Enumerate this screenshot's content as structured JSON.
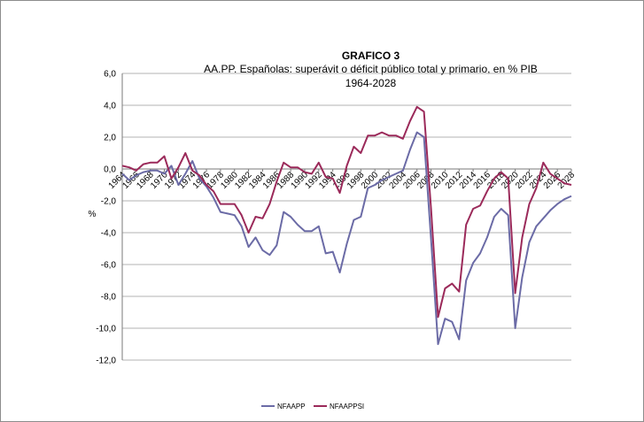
{
  "chart_data": {
    "type": "line",
    "title": "GRAFICO 3",
    "subtitle_line1": "AA.PP. Españolas:  superávit o déficit público total y primario, en % PIB",
    "subtitle_line2": "1964-2028",
    "ylabel": "%",
    "xlabel": "",
    "ylim": [
      -12,
      6
    ],
    "yticks": [
      "6,0",
      "4,0",
      "2,0",
      "0,0",
      "-2,0",
      "-4,0",
      "-6,0",
      "-8,0",
      "-10,0",
      "-12,0"
    ],
    "ytick_values": [
      6,
      4,
      2,
      0,
      -2,
      -4,
      -6,
      -8,
      -10,
      -12
    ],
    "xticks": [
      "1964",
      "1966",
      "1968",
      "1970",
      "1972",
      "1974",
      "1976",
      "1978",
      "1980",
      "1982",
      "1984",
      "1986",
      "1988",
      "1990",
      "1992",
      "1994",
      "1996",
      "1998",
      "2000",
      "2002",
      "2004",
      "2006",
      "2008",
      "2010",
      "2012",
      "2014",
      "2016",
      "2018",
      "2020",
      "2022",
      "2024",
      "2026",
      "2028"
    ],
    "grid": true,
    "legend_position": "bottom",
    "x": [
      1964,
      1965,
      1966,
      1967,
      1968,
      1969,
      1970,
      1971,
      1972,
      1973,
      1974,
      1975,
      1976,
      1977,
      1978,
      1979,
      1980,
      1981,
      1982,
      1983,
      1984,
      1985,
      1986,
      1987,
      1988,
      1989,
      1990,
      1991,
      1992,
      1993,
      1994,
      1995,
      1996,
      1997,
      1998,
      1999,
      2000,
      2001,
      2002,
      2003,
      2004,
      2005,
      2006,
      2007,
      2008,
      2009,
      2010,
      2011,
      2012,
      2013,
      2014,
      2015,
      2016,
      2017,
      2018,
      2019,
      2020,
      2021,
      2022,
      2023,
      2024,
      2025,
      2026,
      2027,
      2028
    ],
    "series": [
      {
        "name": "NFAAPP",
        "color": "#6b6ba6",
        "values": [
          -0.3,
          -0.7,
          -0.4,
          -0.2,
          -0.1,
          -0.1,
          -0.3,
          0.2,
          -1.0,
          -0.3,
          0.5,
          -0.6,
          -1.1,
          -1.8,
          -2.7,
          -2.8,
          -2.9,
          -3.6,
          -4.9,
          -4.3,
          -5.1,
          -5.4,
          -4.8,
          -2.7,
          -3.0,
          -3.5,
          -3.9,
          -3.9,
          -3.6,
          -5.3,
          -5.2,
          -6.5,
          -4.7,
          -3.2,
          -3.0,
          -1.2,
          -1.0,
          -0.7,
          -0.5,
          -0.3,
          -0.1,
          1.2,
          2.3,
          2.0,
          -4.4,
          -11.0,
          -9.4,
          -9.6,
          -10.7,
          -7.0,
          -5.9,
          -5.3,
          -4.3,
          -3.0,
          -2.5,
          -2.9,
          -10.0,
          -6.8,
          -4.6,
          -3.6,
          -3.1,
          -2.6,
          -2.2,
          -1.9,
          -1.7
        ]
      },
      {
        "name": "NFAAPPSI",
        "color": "#9b2a5a",
        "values": [
          0.2,
          0.1,
          -0.1,
          0.3,
          0.4,
          0.4,
          0.8,
          -0.6,
          0.1,
          1.0,
          -0.1,
          -0.4,
          -1.0,
          -1.4,
          -2.2,
          -2.2,
          -2.2,
          -2.9,
          -4.0,
          -3.0,
          -3.1,
          -2.2,
          -0.8,
          0.4,
          0.1,
          0.1,
          -0.2,
          -0.3,
          0.4,
          -0.5,
          -0.6,
          -1.5,
          0.2,
          1.4,
          1.0,
          2.1,
          2.1,
          2.3,
          2.1,
          2.1,
          1.9,
          3.0,
          3.9,
          3.6,
          -2.5,
          -9.3,
          -7.5,
          -7.2,
          -7.7,
          -3.5,
          -2.5,
          -2.3,
          -1.4,
          -0.6,
          -0.2,
          -0.6,
          -7.8,
          -4.3,
          -2.2,
          -1.2,
          0.4,
          -0.3,
          -0.6,
          -0.9,
          -1.0
        ]
      }
    ]
  }
}
